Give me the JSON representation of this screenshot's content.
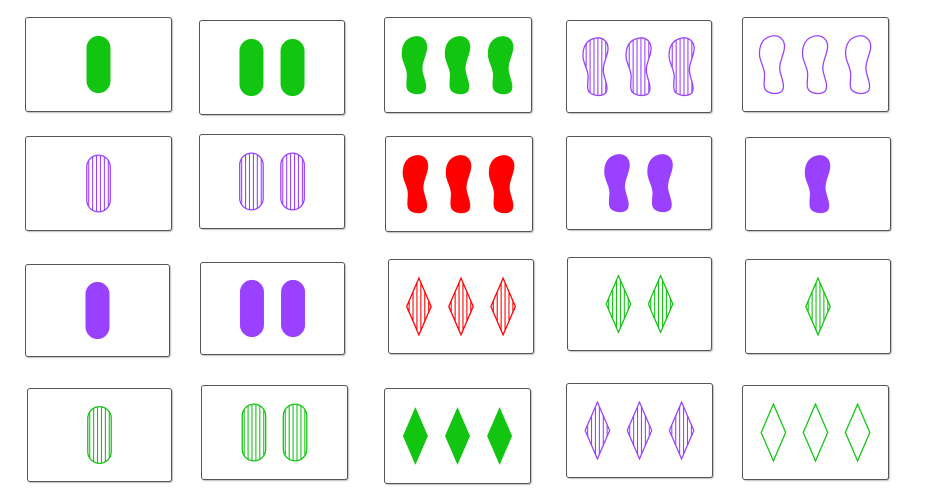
{
  "colors": {
    "green": "#11c511",
    "red": "#ff0000",
    "purple": "#9a40ff"
  },
  "cards": [
    {
      "count": 1,
      "shape": "oval",
      "color": "green",
      "fill": "solid"
    },
    {
      "count": 2,
      "shape": "oval",
      "color": "green",
      "fill": "solid"
    },
    {
      "count": 3,
      "shape": "squiggle",
      "color": "green",
      "fill": "solid"
    },
    {
      "count": 3,
      "shape": "squiggle",
      "color": "purple",
      "fill": "striped"
    },
    {
      "count": 3,
      "shape": "squiggle",
      "color": "purple",
      "fill": "empty"
    },
    {
      "count": 1,
      "shape": "oval",
      "color": "purple",
      "fill": "striped"
    },
    {
      "count": 2,
      "shape": "oval",
      "color": "purple",
      "fill": "striped"
    },
    {
      "count": 3,
      "shape": "squiggle",
      "color": "red",
      "fill": "solid"
    },
    {
      "count": 2,
      "shape": "squiggle",
      "color": "purple",
      "fill": "solid"
    },
    {
      "count": 1,
      "shape": "squiggle",
      "color": "purple",
      "fill": "solid"
    },
    {
      "count": 1,
      "shape": "oval",
      "color": "purple",
      "fill": "solid"
    },
    {
      "count": 2,
      "shape": "oval",
      "color": "purple",
      "fill": "solid"
    },
    {
      "count": 3,
      "shape": "diamond",
      "color": "red",
      "fill": "striped"
    },
    {
      "count": 2,
      "shape": "diamond",
      "color": "green",
      "fill": "striped"
    },
    {
      "count": 1,
      "shape": "diamond",
      "color": "green",
      "fill": "striped"
    },
    {
      "count": 1,
      "shape": "oval",
      "color": "green",
      "fill": "striped"
    },
    {
      "count": 2,
      "shape": "oval",
      "color": "green",
      "fill": "striped"
    },
    {
      "count": 3,
      "shape": "diamond",
      "color": "green",
      "fill": "solid"
    },
    {
      "count": 3,
      "shape": "diamond",
      "color": "purple",
      "fill": "striped"
    },
    {
      "count": 3,
      "shape": "diamond",
      "color": "green",
      "fill": "empty"
    }
  ]
}
